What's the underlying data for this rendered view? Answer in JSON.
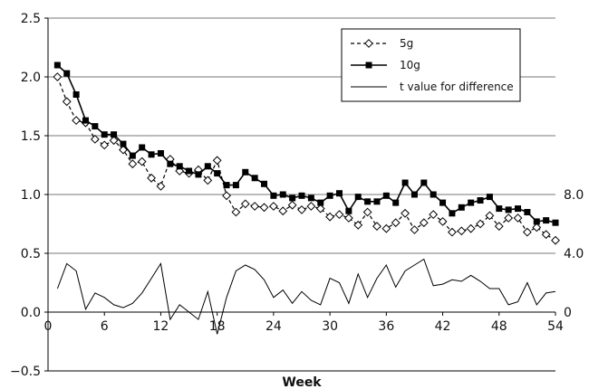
{
  "chart_data": {
    "type": "line",
    "title": "",
    "xlabel": "Week",
    "ylabel": "",
    "xlim": [
      0,
      54
    ],
    "ylim": [
      -0.5,
      2.5
    ],
    "x_ticks": [
      0,
      6,
      12,
      18,
      24,
      30,
      36,
      42,
      48,
      54
    ],
    "y_ticks": [
      -0.5,
      0.0,
      0.5,
      1.0,
      1.5,
      2.0,
      2.5
    ],
    "y_tick_labels": [
      "−0.5",
      "0.0",
      "0.5",
      "1.0",
      "1.5",
      "2.0",
      "2.5"
    ],
    "secondary_axis": {
      "ticks": [
        0,
        4,
        8
      ],
      "tick_labels": [
        "0",
        "4.0",
        "8.0"
      ],
      "range": [
        0,
        8
      ]
    },
    "gridlines": "horizontal",
    "legend_position": "top-right",
    "series": [
      {
        "name": "5g",
        "style": "dashed line with hollow diamonds",
        "color": "#000000",
        "x": [
          1,
          2,
          3,
          4,
          5,
          6,
          7,
          8,
          9,
          10,
          11,
          12,
          13,
          14,
          15,
          16,
          17,
          18,
          19,
          20,
          21,
          22,
          23,
          24,
          25,
          26,
          27,
          28,
          29,
          30,
          31,
          32,
          33,
          34,
          35,
          36,
          37,
          38,
          39,
          40,
          41,
          42,
          43,
          44,
          45,
          46,
          47,
          48,
          49,
          50,
          51,
          52,
          53,
          54
        ],
        "values": [
          2.0,
          1.79,
          1.63,
          1.61,
          1.47,
          1.42,
          1.46,
          1.38,
          1.26,
          1.28,
          1.14,
          1.07,
          1.3,
          1.2,
          1.18,
          1.21,
          1.12,
          1.29,
          0.99,
          0.85,
          0.92,
          0.9,
          0.89,
          0.9,
          0.86,
          0.91,
          0.87,
          0.9,
          0.88,
          0.81,
          0.83,
          0.8,
          0.74,
          0.85,
          0.73,
          0.71,
          0.76,
          0.84,
          0.7,
          0.76,
          0.83,
          0.77,
          0.68,
          0.69,
          0.71,
          0.75,
          0.82,
          0.73,
          0.8,
          0.8,
          0.68,
          0.72,
          0.66,
          0.61
        ]
      },
      {
        "name": "10g",
        "style": "solid line with filled squares",
        "color": "#000000",
        "x": [
          1,
          2,
          3,
          4,
          5,
          6,
          7,
          8,
          9,
          10,
          11,
          12,
          13,
          14,
          15,
          16,
          17,
          18,
          19,
          20,
          21,
          22,
          23,
          24,
          25,
          26,
          27,
          28,
          29,
          30,
          31,
          32,
          33,
          34,
          35,
          36,
          37,
          38,
          39,
          40,
          41,
          42,
          43,
          44,
          45,
          46,
          47,
          48,
          49,
          50,
          51,
          52,
          53,
          54
        ],
        "values": [
          2.1,
          2.03,
          1.85,
          1.63,
          1.58,
          1.51,
          1.51,
          1.43,
          1.33,
          1.4,
          1.34,
          1.35,
          1.26,
          1.24,
          1.2,
          1.17,
          1.24,
          1.18,
          1.08,
          1.08,
          1.19,
          1.14,
          1.09,
          0.99,
          1.0,
          0.97,
          0.99,
          0.97,
          0.93,
          0.99,
          1.01,
          0.86,
          0.98,
          0.94,
          0.94,
          0.99,
          0.93,
          1.1,
          1.0,
          1.1,
          1.0,
          0.93,
          0.84,
          0.89,
          0.93,
          0.95,
          0.98,
          0.88,
          0.87,
          0.88,
          0.85,
          0.77,
          0.78,
          0.76
        ]
      },
      {
        "name": "t value for difference",
        "style": "thin solid line, right axis",
        "axis": "right",
        "color": "#000000",
        "x": [
          1,
          2,
          3,
          4,
          5,
          6,
          7,
          8,
          9,
          10,
          11,
          12,
          13,
          14,
          15,
          16,
          17,
          18,
          19,
          20,
          21,
          22,
          23,
          24,
          25,
          26,
          27,
          28,
          29,
          30,
          31,
          32,
          33,
          34,
          35,
          36,
          37,
          38,
          39,
          40,
          41,
          42,
          43,
          44,
          45,
          46,
          47,
          48,
          49,
          50,
          51,
          52,
          53,
          54
        ],
        "values": [
          1.6,
          3.3,
          2.8,
          0.2,
          1.3,
          1.0,
          0.5,
          0.3,
          0.6,
          1.3,
          2.3,
          3.3,
          -0.5,
          0.5,
          0.0,
          -0.5,
          1.4,
          -1.5,
          1.0,
          2.8,
          3.2,
          2.9,
          2.2,
          1.0,
          1.5,
          0.6,
          1.4,
          0.8,
          0.5,
          2.3,
          2.0,
          0.6,
          2.6,
          1.0,
          2.3,
          3.2,
          1.7,
          2.8,
          3.2,
          3.6,
          1.8,
          1.9,
          2.2,
          2.1,
          2.5,
          2.1,
          1.6,
          1.6,
          0.5,
          0.7,
          2.0,
          0.5,
          1.3,
          1.4
        ]
      }
    ]
  }
}
